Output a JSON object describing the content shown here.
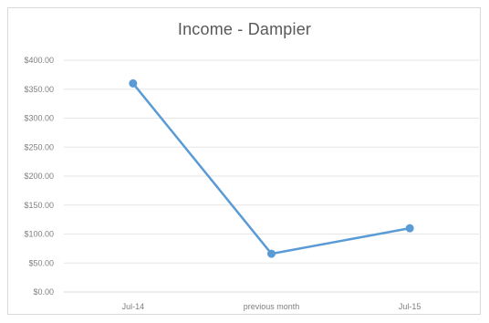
{
  "chart_data": {
    "type": "line",
    "title": "Income - Dampier",
    "xlabel": "",
    "ylabel": "",
    "categories": [
      "Jul-14",
      "previous month",
      "Jul-15"
    ],
    "series": [
      {
        "values": [
          360,
          66,
          110
        ]
      }
    ],
    "ylim": [
      0,
      400
    ],
    "yticks": [
      {
        "value": 0,
        "label": "$0.00"
      },
      {
        "value": 50,
        "label": "$50.00"
      },
      {
        "value": 100,
        "label": "$100.00"
      },
      {
        "value": 150,
        "label": "$150.00"
      },
      {
        "value": 200,
        "label": "$200.00"
      },
      {
        "value": 250,
        "label": "$250.00"
      },
      {
        "value": 300,
        "label": "$300.00"
      },
      {
        "value": 350,
        "label": "$350.00"
      },
      {
        "value": 400,
        "label": "$400.00"
      }
    ],
    "grid": true,
    "legend": "none",
    "colors": {
      "line": "#5b9bd5",
      "grid": "#e6e6e6",
      "axis": "#d9d9d9",
      "text": "#7f7f7f",
      "title": "#595959"
    }
  }
}
